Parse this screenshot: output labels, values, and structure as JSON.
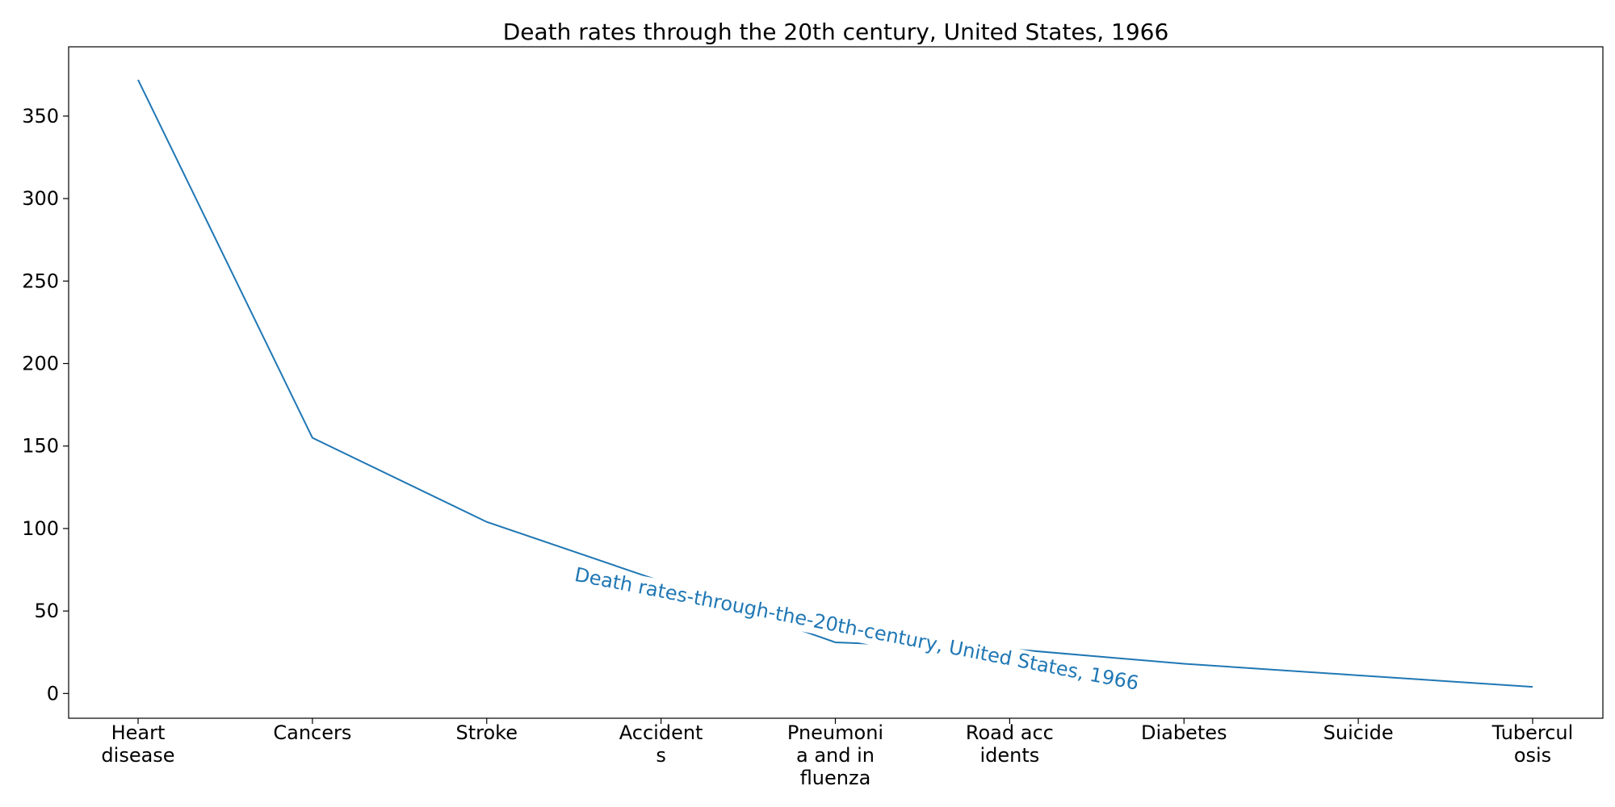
{
  "chart_data": {
    "type": "line",
    "title": "Death rates through the 20th century, United States, 1966",
    "xlabel": "",
    "ylabel": "",
    "categories": [
      [
        "Heart",
        "disease"
      ],
      [
        "Cancers"
      ],
      [
        "Stroke"
      ],
      [
        "Accident",
        "s"
      ],
      [
        "Pneumoni",
        "a and in",
        "fluenza"
      ],
      [
        "Road acc",
        "idents"
      ],
      [
        "Diabetes"
      ],
      [
        "Suicide"
      ],
      [
        "Tubercul",
        "osis"
      ]
    ],
    "series": [
      {
        "name": "Death rates-through-the-20th-century, United States, 1966",
        "color": "#1f77b4",
        "values": [
          372,
          155,
          104,
          68,
          31,
          27,
          18,
          11,
          4
        ]
      }
    ],
    "ylim": [
      -15,
      392
    ],
    "yticks": [
      0,
      50,
      100,
      150,
      200,
      250,
      300,
      350
    ],
    "grid": false,
    "legend": "none"
  }
}
